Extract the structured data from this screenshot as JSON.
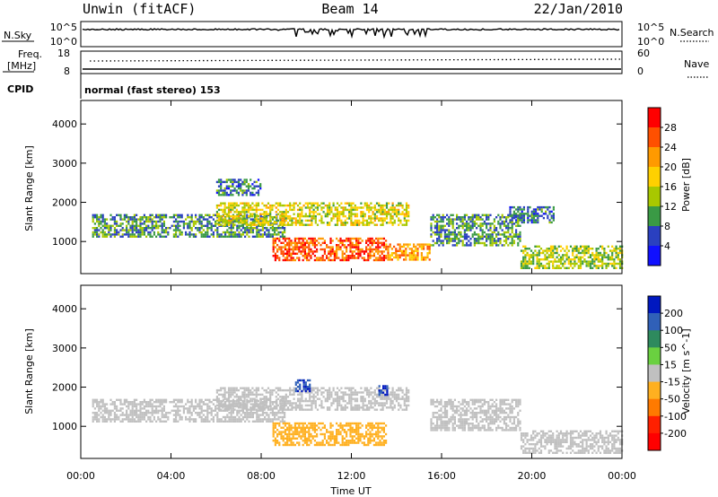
{
  "header": {
    "station": "Unwin (fitACF)",
    "beam": "Beam 14",
    "date": "22/Jan/2010"
  },
  "noise_panel": {
    "left_label": "N.Sky",
    "left_ticks": [
      "10^5",
      "10^0"
    ],
    "right_ticks": [
      "10^5",
      "10^0"
    ],
    "right_label": "N.Search"
  },
  "freq_panel": {
    "left_label_1": "Freq.",
    "left_label_2": "[MHz]",
    "left_ticks": [
      "18",
      "8"
    ],
    "right_ticks": [
      "60",
      "0"
    ],
    "right_label": "Nave"
  },
  "cpid": {
    "label": "CPID",
    "text": "normal (fast stereo) 153"
  },
  "power_panel": {
    "ylabel": "Slant Range [km]",
    "yticks": [
      "4000",
      "3000",
      "2000",
      "1000"
    ],
    "colorbar_label": "Power [dB]",
    "colorbar_ticks": [
      "28",
      "24",
      "20",
      "16",
      "12",
      "8",
      "4"
    ],
    "colorbar_colors": [
      "#ff0000",
      "#ff5000",
      "#ff9a00",
      "#ffd000",
      "#a8c800",
      "#3a9a45",
      "#2a40c0",
      "#1010ff"
    ]
  },
  "velocity_panel": {
    "ylabel": "Slant Range [km]",
    "yticks": [
      "4000",
      "3000",
      "2000",
      "1000"
    ],
    "colorbar_label": "Velocity [m s^-1]",
    "colorbar_ticks": [
      "200",
      "100",
      "50",
      "15",
      "-15",
      "-50",
      "-100",
      "-200"
    ],
    "colorbar_colors": [
      "#0018c0",
      "#3060b8",
      "#2e8a5e",
      "#6ad040",
      "#c0c0c0",
      "#ffb020",
      "#ff7a00",
      "#ff2000",
      "#ff0000"
    ]
  },
  "x_axis": {
    "label": "Time UT",
    "ticks": [
      "00:00",
      "04:00",
      "08:00",
      "12:00",
      "16:00",
      "20:00",
      "00:00"
    ]
  },
  "chart_data": {
    "type": "heatmap",
    "x_range_hours": [
      0,
      24
    ],
    "y_range_km": [
      180,
      4600
    ],
    "power_bands": [
      {
        "t_start": 0.5,
        "t_end": 9.0,
        "range_start": 1100,
        "range_end": 1700,
        "value_db": 10
      },
      {
        "t_start": 6.0,
        "t_end": 14.5,
        "range_start": 1450,
        "range_end": 2000,
        "value_db": 16
      },
      {
        "t_start": 8.5,
        "t_end": 13.5,
        "range_start": 500,
        "range_end": 1100,
        "value_db": 26
      },
      {
        "t_start": 13.5,
        "t_end": 15.5,
        "range_start": 550,
        "range_end": 950,
        "value_db": 22
      },
      {
        "t_start": 15.5,
        "t_end": 19.5,
        "range_start": 900,
        "range_end": 1700,
        "value_db": 10
      },
      {
        "t_start": 19.5,
        "t_end": 24.0,
        "range_start": 300,
        "range_end": 900,
        "value_db": 14
      },
      {
        "t_start": 6.0,
        "t_end": 8.0,
        "range_start": 2200,
        "range_end": 2600,
        "value_db": 8
      },
      {
        "t_start": 19.0,
        "t_end": 21.0,
        "range_start": 1500,
        "range_end": 1900,
        "value_db": 8
      }
    ],
    "velocity_bands": [
      {
        "t_start": 0.5,
        "t_end": 9.0,
        "range_start": 1100,
        "range_end": 1700,
        "value_ms": 0
      },
      {
        "t_start": 6.0,
        "t_end": 14.5,
        "range_start": 1450,
        "range_end": 2000,
        "value_ms": 0
      },
      {
        "t_start": 8.5,
        "t_end": 13.5,
        "range_start": 500,
        "range_end": 1100,
        "value_ms": -30
      },
      {
        "t_start": 15.5,
        "t_end": 19.5,
        "range_start": 900,
        "range_end": 1700,
        "value_ms": 0
      },
      {
        "t_start": 19.5,
        "t_end": 24.0,
        "range_start": 300,
        "range_end": 900,
        "value_ms": 0
      },
      {
        "t_start": 9.5,
        "t_end": 10.2,
        "range_start": 1900,
        "range_end": 2200,
        "value_ms": 200
      },
      {
        "t_start": 13.2,
        "t_end": 13.6,
        "range_start": 1800,
        "range_end": 2050,
        "value_ms": 200
      }
    ]
  }
}
